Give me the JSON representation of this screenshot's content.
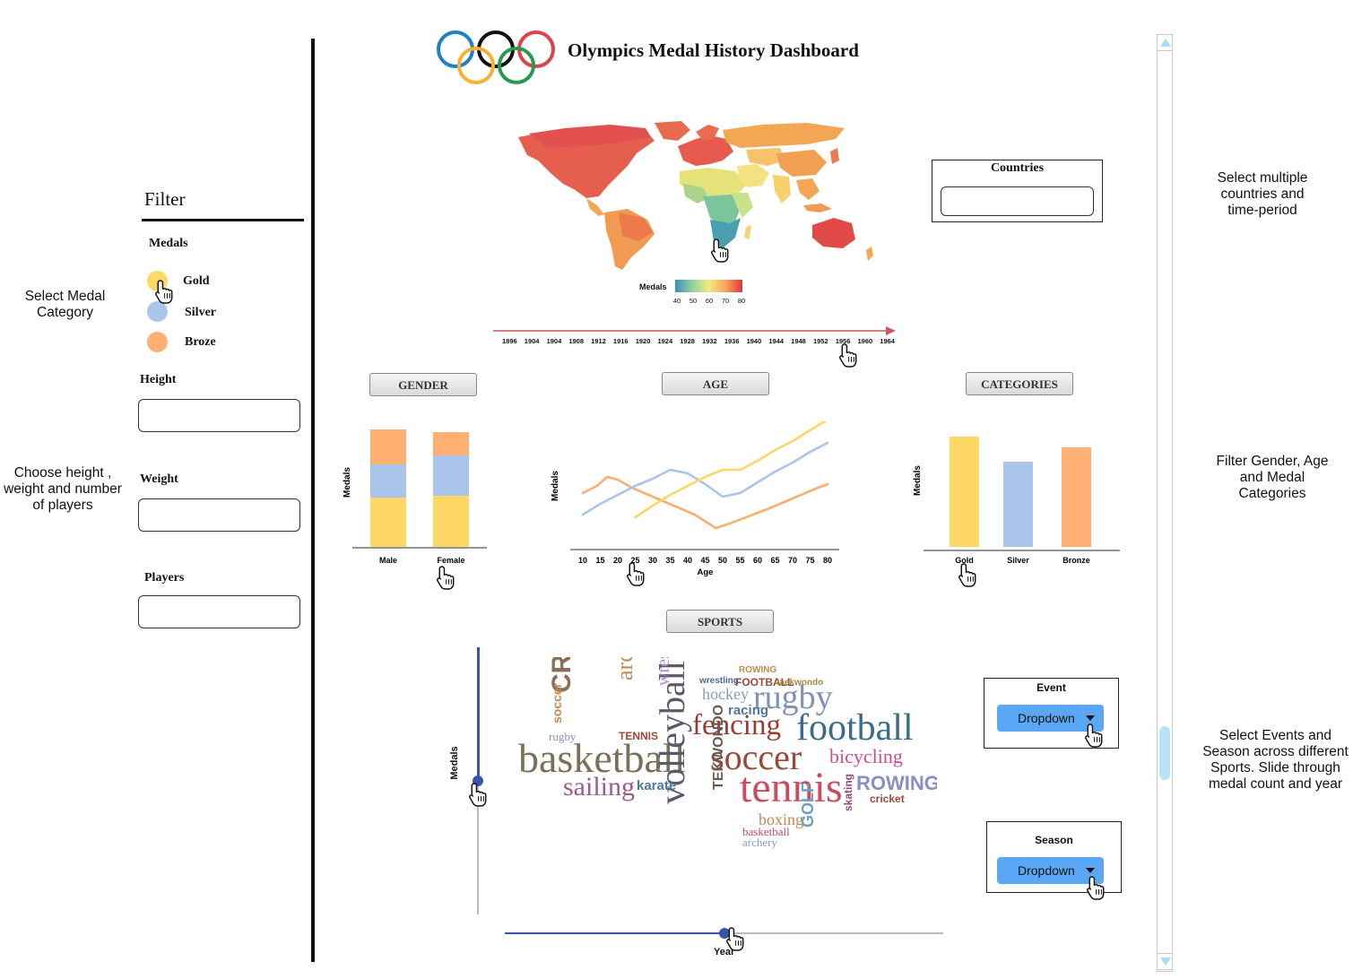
{
  "header": {
    "title": "Olympics Medal History Dashboard",
    "ring_colors": [
      "#1f80c4",
      "#f2b232",
      "#111111",
      "#2a9a4a",
      "#e0414e"
    ]
  },
  "annotations": {
    "medal_category": "Select Medal Category",
    "height_weight_players": "Choose height , weight and number of players",
    "countries_period": "Select multiple countries and time-period",
    "gender_age_categories": "Filter Gender, Age and Medal Categories",
    "events_season": "Select Events and Season across different Sports. Slide through medal count and year"
  },
  "filter": {
    "title": "Filter",
    "medals_label": "Medals",
    "medals": [
      {
        "label": "Gold",
        "color": "#fdd865"
      },
      {
        "label": "Silver",
        "color": "#a9c5ec"
      },
      {
        "label": "Broze",
        "color": "#fdb071"
      }
    ],
    "height_label": "Height",
    "weight_label": "Weight",
    "players_label": "Players",
    "height_value": "",
    "weight_value": "",
    "players_value": ""
  },
  "map": {
    "legend_title": "Medals",
    "legend_ticks": [
      "40",
      "50",
      "60",
      "70",
      "80"
    ],
    "years": [
      "1896",
      "1904",
      "1904",
      "1908",
      "1912",
      "1916",
      "1920",
      "1924",
      "1928",
      "1932",
      "1936",
      "1940",
      "1944",
      "1948",
      "1952",
      "1956",
      "1960",
      "1964"
    ]
  },
  "countries": {
    "label": "Countries",
    "value": ""
  },
  "sections": {
    "gender": "GENDER",
    "age": "AGE",
    "categories": "CATEGORIES",
    "sports": "SPORTS"
  },
  "chart_data": [
    {
      "type": "bar",
      "stacked": true,
      "ylabel": "Medals",
      "categories": [
        "Male",
        "Female"
      ],
      "series": [
        {
          "color": "#fdd865",
          "values": [
            55,
            57
          ]
        },
        {
          "color": "#a9c5ec",
          "values": [
            37,
            45
          ]
        },
        {
          "color": "#fdb071",
          "values": [
            39,
            26
          ]
        }
      ]
    },
    {
      "type": "line",
      "xlabel": "Age",
      "ylabel": "Medals",
      "x_ticks": [
        "10",
        "15",
        "20",
        "25",
        "30",
        "35",
        "40",
        "45",
        "50",
        "55",
        "60",
        "65",
        "70",
        "75",
        "80"
      ],
      "series": [
        {
          "color": "#f8b06e",
          "x": [
            10,
            14,
            17,
            20,
            24,
            30,
            36,
            42,
            48,
            52,
            58,
            64,
            70,
            76,
            80
          ],
          "y": [
            62,
            70,
            80,
            77,
            68,
            58,
            48,
            38,
            23,
            28,
            37,
            46,
            56,
            66,
            72
          ]
        },
        {
          "color": "#a9c4ea",
          "x": [
            10,
            15,
            20,
            25,
            30,
            35,
            40,
            45,
            50,
            55,
            60,
            65,
            70,
            75,
            80
          ],
          "y": [
            38,
            50,
            60,
            70,
            78,
            88,
            84,
            72,
            58,
            62,
            74,
            86,
            96,
            108,
            118
          ]
        },
        {
          "color": "#fcd767",
          "x": [
            25,
            30,
            35,
            40,
            45,
            50,
            55,
            60,
            65,
            70,
            75,
            80
          ],
          "y": [
            35,
            48,
            60,
            70,
            80,
            88,
            88,
            98,
            110,
            120,
            132,
            144
          ]
        }
      ]
    },
    {
      "type": "bar",
      "ylabel": "Medals",
      "categories": [
        "Gold",
        "Silver",
        "Bronze"
      ],
      "colors": [
        "#fdd865",
        "#a9c5ec",
        "#fdb071"
      ],
      "values": [
        123,
        95,
        111
      ]
    }
  ],
  "sports_cloud": {
    "words": [
      {
        "text": "basketball",
        "color": "#7a7058"
      },
      {
        "text": "soccer",
        "color": "#9b4a38"
      },
      {
        "text": "tennis",
        "color": "#c94d62"
      },
      {
        "text": "football",
        "color": "#3a6d8c"
      },
      {
        "text": "fencing",
        "color": "#9b3a2d"
      },
      {
        "text": "rugby",
        "color": "#8090b8"
      },
      {
        "text": "CRICKET",
        "color": "#8a6e55"
      },
      {
        "text": "archery",
        "color": "#c08a50"
      },
      {
        "text": "sailing",
        "color": "#9a5a8a"
      },
      {
        "text": "volleyball",
        "color": "#5a5a6a"
      },
      {
        "text": "bicycling",
        "color": "#d04d8a"
      },
      {
        "text": "ROWING",
        "color": "#8a8ec0"
      },
      {
        "text": "boxing",
        "color": "#c08a50"
      },
      {
        "text": "wrestling",
        "color": "#a98ac8"
      },
      {
        "text": "hockey",
        "color": "#8a9ab8"
      },
      {
        "text": "karate",
        "color": "#4a7aa0"
      },
      {
        "text": "racing",
        "color": "#4a7a9a"
      },
      {
        "text": "TEKWONDO",
        "color": "#6a5a50"
      },
      {
        "text": "GOLF",
        "color": "#6aa0c0"
      },
      {
        "text": "basketball",
        "color": "#c04a6a"
      },
      {
        "text": "archery",
        "color": "#8a9ac8"
      },
      {
        "text": "cricket",
        "color": "#9a4a3a"
      },
      {
        "text": "FOOTBALL",
        "color": "#9a4a3a"
      },
      {
        "text": "taekwondo",
        "color": "#a08a40"
      },
      {
        "text": "ROWING",
        "color": "#c08a50"
      },
      {
        "text": "TENNIS",
        "color": "#9a4a3a"
      },
      {
        "text": "rugby",
        "color": "#8a8ac0"
      },
      {
        "text": "soccer",
        "color": "#c08a50"
      },
      {
        "text": "wrestling",
        "color": "#4a6a9a"
      },
      {
        "text": "skating",
        "color": "#8a4a7a"
      }
    ]
  },
  "sliders": {
    "vertical_label": "Medals",
    "vertical_value": 0.5,
    "horizontal_label": "Year",
    "horizontal_value": 0.5
  },
  "event": {
    "label": "Event",
    "dropdown": "Dropdown"
  },
  "season": {
    "label": "Season",
    "dropdown": "Dropdown"
  },
  "scrollbar": {
    "position": 0.17
  }
}
